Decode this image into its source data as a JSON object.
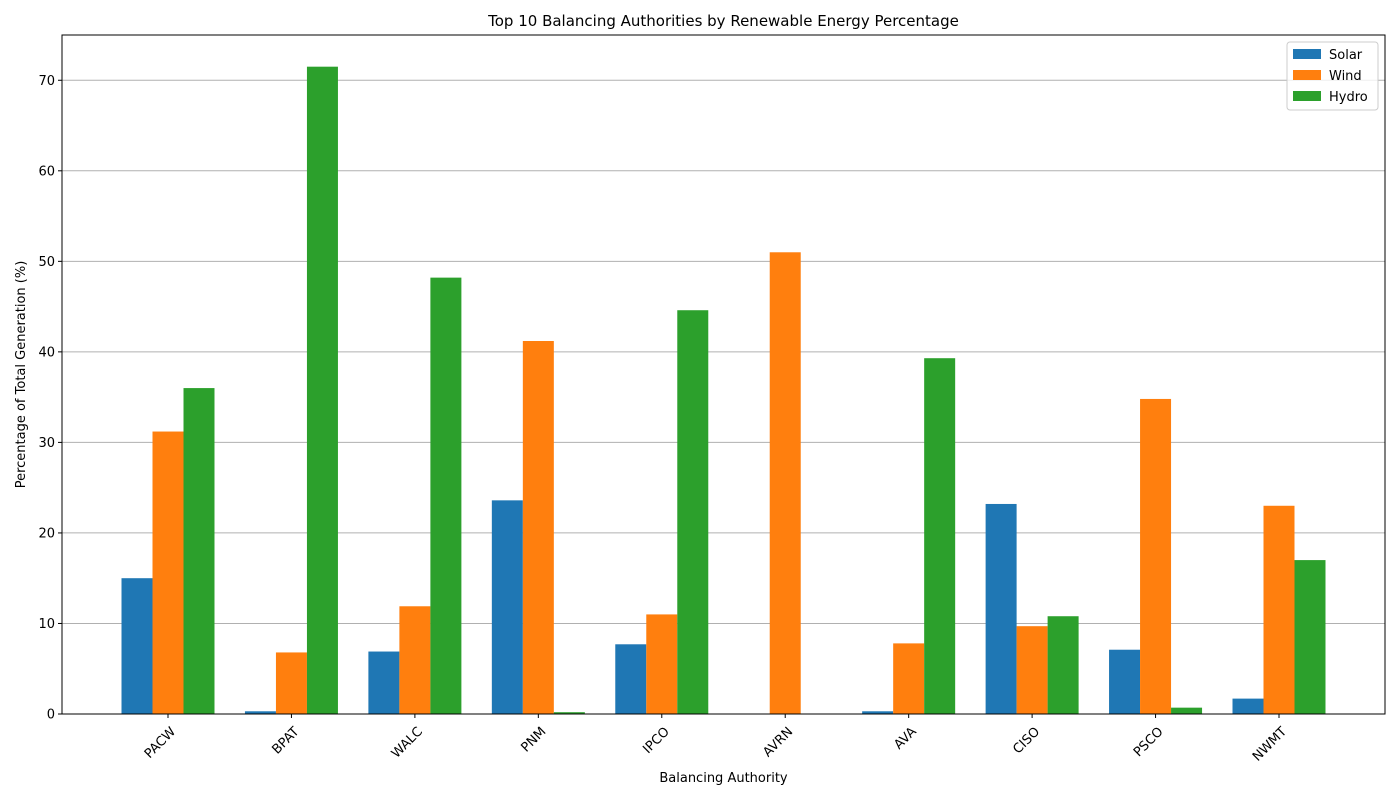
{
  "chart_data": {
    "type": "bar",
    "title": "Top 10 Balancing Authorities by Renewable Energy Percentage",
    "xlabel": "Balancing Authority",
    "ylabel": "Percentage of Total Generation (%)",
    "ylim": [
      0,
      75
    ],
    "yticks": [
      0,
      10,
      20,
      30,
      40,
      50,
      60,
      70
    ],
    "grid": "horizontal",
    "legend_position": "top-right",
    "categories": [
      "PACW",
      "BPAT",
      "WALC",
      "PNM",
      "IPCO",
      "AVRN",
      "AVA",
      "CISO",
      "PSCO",
      "NWMT"
    ],
    "series": [
      {
        "name": "Solar",
        "color": "#1f77b4",
        "values": [
          15.0,
          0.3,
          6.9,
          23.6,
          7.7,
          0.0,
          0.3,
          23.2,
          7.1,
          1.7
        ]
      },
      {
        "name": "Wind",
        "color": "#ff7f0e",
        "values": [
          31.2,
          6.8,
          11.9,
          41.2,
          11.0,
          51.0,
          7.8,
          9.7,
          34.8,
          23.0
        ]
      },
      {
        "name": "Hydro",
        "color": "#2ca02c",
        "values": [
          36.0,
          71.5,
          48.2,
          0.2,
          44.6,
          0.0,
          39.3,
          10.8,
          0.7,
          17.0
        ]
      }
    ]
  }
}
